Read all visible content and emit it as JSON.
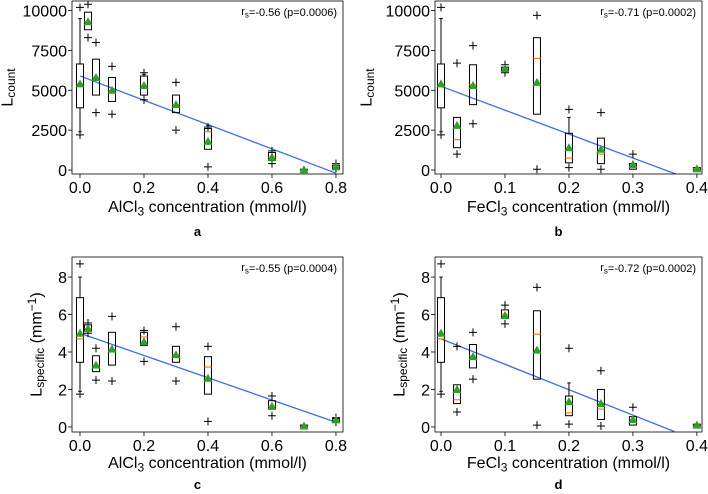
{
  "chart_data": [
    {
      "type": "box",
      "panel_label": "a",
      "xlabel": {
        "pre": "AlCl",
        "sub": "3",
        "post": " concentration (mmol/l)"
      },
      "ylabel": {
        "pre": "L",
        "sub": "count",
        "post": ""
      },
      "annotation": {
        "pre": "r",
        "sub": "s",
        "post": "=-0.56 (p=0.0006)"
      },
      "xlim": [
        -0.025,
        0.822
      ],
      "ylim": [
        -250,
        10600
      ],
      "xticks": [
        0.0,
        0.2,
        0.4,
        0.6,
        0.8
      ],
      "xtick_labels": [
        "0.0",
        "0.2",
        "0.4",
        "0.6",
        "0.8"
      ],
      "yticks": [
        0,
        2500,
        5000,
        7500,
        10000
      ],
      "ytick_labels": [
        "0",
        "2500",
        "5000",
        "7500",
        "10000"
      ],
      "regression": {
        "x": [
          0,
          0.8
        ],
        "y": [
          5900,
          -200
        ]
      },
      "boxes": [
        {
          "x": 0.0,
          "whislo": 2400,
          "q1": 3900,
          "med": 5400,
          "q3": 6650,
          "whishi": 9500,
          "mean": 5400,
          "fliers": [
            10200,
            2200
          ]
        },
        {
          "x": 0.025,
          "whislo": 8800,
          "q1": 8800,
          "med": 9300,
          "q3": 9900,
          "whishi": 9900,
          "mean": 9300,
          "fliers": [
            10400,
            8300
          ]
        },
        {
          "x": 0.05,
          "whislo": 4700,
          "q1": 4700,
          "med": 5800,
          "q3": 6950,
          "whishi": 6950,
          "mean": 5800,
          "fliers": [
            8000,
            3600
          ]
        },
        {
          "x": 0.1,
          "whislo": 4300,
          "q1": 4300,
          "med": 5000,
          "q3": 5800,
          "whishi": 5800,
          "mean": 5000,
          "fliers": [
            6500,
            3500
          ]
        },
        {
          "x": 0.2,
          "whislo": 4400,
          "q1": 4700,
          "med": 5300,
          "q3": 5900,
          "whishi": 6000,
          "mean": 5300,
          "fliers": [
            6100,
            4400
          ]
        },
        {
          "x": 0.3,
          "whislo": 3600,
          "q1": 3600,
          "med": 4100,
          "q3": 4700,
          "whishi": 4700,
          "mean": 4100,
          "fliers": [
            5500,
            2500
          ]
        },
        {
          "x": 0.4,
          "whislo": 1300,
          "q1": 1300,
          "med": 2400,
          "q3": 2600,
          "whishi": 2800,
          "mean": 1800,
          "fliers": [
            2700,
            200
          ]
        },
        {
          "x": 0.6,
          "whislo": 600,
          "q1": 600,
          "med": 800,
          "q3": 1100,
          "whishi": 1100,
          "mean": 800,
          "fliers": [
            1200,
            400
          ]
        },
        {
          "x": 0.7,
          "whislo": 0,
          "q1": 0,
          "med": 20,
          "q3": 50,
          "whishi": 50,
          "mean": 20,
          "fliers": []
        },
        {
          "x": 0.8,
          "whislo": 100,
          "q1": 100,
          "med": 200,
          "q3": 300,
          "whishi": 300,
          "mean": 200,
          "fliers": [
            400,
            100
          ]
        }
      ]
    },
    {
      "type": "box",
      "panel_label": "b",
      "xlabel": {
        "pre": "FeCl",
        "sub": "3",
        "post": " concentration (mmol/l)"
      },
      "ylabel": {
        "pre": "L",
        "sub": "count",
        "post": ""
      },
      "annotation": {
        "pre": "r",
        "sub": "s",
        "post": "=-0.71 (p=0.0002)"
      },
      "xlim": [
        -0.0094,
        0.408
      ],
      "ylim": [
        -250,
        10600
      ],
      "xticks": [
        0.0,
        0.1,
        0.2,
        0.3,
        0.4
      ],
      "xtick_labels": [
        "0.0",
        "0.1",
        "0.2",
        "0.3",
        "0.4"
      ],
      "yticks": [
        0,
        2500,
        5000,
        7500,
        10000
      ],
      "ytick_labels": [
        "0",
        "2500",
        "5000",
        "7500",
        "10000"
      ],
      "regression": {
        "x": [
          0,
          0.367
        ],
        "y": [
          5250,
          -250
        ]
      },
      "boxes": [
        {
          "x": 0.0,
          "whislo": 2400,
          "q1": 3900,
          "med": 5400,
          "q3": 6650,
          "whishi": 9500,
          "mean": 5400,
          "fliers": [
            10200,
            2200
          ]
        },
        {
          "x": 0.025,
          "whislo": 1400,
          "q1": 1400,
          "med": 1900,
          "q3": 3300,
          "whishi": 3300,
          "mean": 2800,
          "fliers": [
            6700,
            1000
          ]
        },
        {
          "x": 0.05,
          "whislo": 4100,
          "q1": 4100,
          "med": 5350,
          "q3": 6600,
          "whishi": 6600,
          "mean": 5300,
          "fliers": [
            7800,
            2900
          ]
        },
        {
          "x": 0.1,
          "whislo": 6200,
          "q1": 6200,
          "med": 6350,
          "q3": 6450,
          "whishi": 6450,
          "mean": 6350,
          "fliers": [
            6600,
            6100
          ]
        },
        {
          "x": 0.15,
          "whislo": 3500,
          "q1": 3500,
          "med": 7000,
          "q3": 8300,
          "whishi": 8300,
          "mean": 5500,
          "fliers": [
            9700,
            50
          ]
        },
        {
          "x": 0.2,
          "whislo": 450,
          "q1": 450,
          "med": 750,
          "q3": 2300,
          "whishi": 3300,
          "mean": 1400,
          "fliers": [
            3800,
            150
          ]
        },
        {
          "x": 0.25,
          "whislo": 400,
          "q1": 400,
          "med": 1000,
          "q3": 2000,
          "whishi": 2000,
          "mean": 1300,
          "fliers": [
            3600,
            50
          ]
        },
        {
          "x": 0.3,
          "whislo": 50,
          "q1": 50,
          "med": 150,
          "q3": 400,
          "whishi": 400,
          "mean": 350,
          "fliers": [
            1000
          ]
        },
        {
          "x": 0.4,
          "whislo": 0,
          "q1": 0,
          "med": 80,
          "q3": 150,
          "whishi": 150,
          "mean": 80,
          "fliers": []
        }
      ]
    },
    {
      "type": "box",
      "panel_label": "c",
      "xlabel": {
        "pre": "AlCl",
        "sub": "3",
        "post": " concentration (mmol/l)"
      },
      "ylabel": {
        "pre": "L",
        "sub": "specific",
        "post": " (mm",
        "sup": "−1",
        "end": ")"
      },
      "annotation": {
        "pre": "r",
        "sub": "s",
        "post": "=-0.55 (p=0.0004)"
      },
      "xlim": [
        -0.025,
        0.822
      ],
      "ylim": [
        -0.27,
        9.07
      ],
      "xticks": [
        0.0,
        0.2,
        0.4,
        0.6,
        0.8
      ],
      "xtick_labels": [
        "0.0",
        "0.2",
        "0.4",
        "0.6",
        "0.8"
      ],
      "yticks": [
        0,
        2,
        4,
        6,
        8
      ],
      "ytick_labels": [
        "0",
        "2",
        "4",
        "6",
        "8"
      ],
      "regression": {
        "x": [
          0,
          0.8
        ],
        "y": [
          5.0,
          0.25
        ]
      },
      "boxes": [
        {
          "x": 0.0,
          "whislo": 1.9,
          "q1": 3.45,
          "med": 4.7,
          "q3": 6.9,
          "whishi": 8.0,
          "mean": 5.0,
          "fliers": [
            8.7,
            1.75
          ]
        },
        {
          "x": 0.025,
          "whislo": 5.1,
          "q1": 5.1,
          "med": 5.25,
          "q3": 5.45,
          "whishi": 5.45,
          "mean": 5.25,
          "fliers": [
            5.55,
            5.0
          ]
        },
        {
          "x": 0.05,
          "whislo": 2.95,
          "q1": 2.95,
          "med": 3.3,
          "q3": 3.8,
          "whishi": 3.8,
          "mean": 3.3,
          "fliers": [
            4.2,
            2.5
          ]
        },
        {
          "x": 0.1,
          "whislo": 3.3,
          "q1": 3.3,
          "med": 4.1,
          "q3": 5.05,
          "whishi": 5.05,
          "mean": 4.15,
          "fliers": [
            5.9,
            2.45
          ]
        },
        {
          "x": 0.2,
          "whislo": 4.35,
          "q1": 4.35,
          "med": 4.8,
          "q3": 5.05,
          "whishi": 5.05,
          "mean": 4.55,
          "fliers": [
            5.15,
            3.5
          ]
        },
        {
          "x": 0.3,
          "whislo": 3.45,
          "q1": 3.45,
          "med": 3.85,
          "q3": 4.3,
          "whishi": 4.3,
          "mean": 3.85,
          "fliers": [
            5.35,
            2.45
          ]
        },
        {
          "x": 0.4,
          "whislo": 1.75,
          "q1": 1.75,
          "med": 3.2,
          "q3": 3.75,
          "whishi": 3.75,
          "mean": 2.6,
          "fliers": [
            4.3,
            0.3
          ]
        },
        {
          "x": 0.6,
          "whislo": 0.95,
          "q1": 0.95,
          "med": 1.1,
          "q3": 1.4,
          "whishi": 1.4,
          "mean": 1.1,
          "fliers": [
            1.65,
            0.6
          ]
        },
        {
          "x": 0.7,
          "whislo": 0,
          "q1": 0,
          "med": 0.05,
          "q3": 0.1,
          "whishi": 0.1,
          "mean": 0.05,
          "fliers": []
        },
        {
          "x": 0.8,
          "whislo": 0.3,
          "q1": 0.3,
          "med": 0.38,
          "q3": 0.45,
          "whishi": 0.45,
          "mean": 0.38,
          "fliers": [
            0.5,
            0.25
          ]
        }
      ]
    },
    {
      "type": "box",
      "panel_label": "d",
      "xlabel": {
        "pre": "FeCl",
        "sub": "3",
        "post": " concentration (mmol/l)"
      },
      "ylabel": {
        "pre": "L",
        "sub": "specific",
        "post": " (mm",
        "sup": "−1",
        "end": ")"
      },
      "annotation": {
        "pre": "r",
        "sub": "s",
        "post": "=-0.72 (p=0.0002)"
      },
      "xlim": [
        -0.0094,
        0.408
      ],
      "ylim": [
        -0.27,
        9.07
      ],
      "xticks": [
        0.0,
        0.1,
        0.2,
        0.3,
        0.4
      ],
      "xtick_labels": [
        "0.0",
        "0.1",
        "0.2",
        "0.3",
        "0.4"
      ],
      "yticks": [
        0,
        2,
        4,
        6,
        8
      ],
      "ytick_labels": [
        "0",
        "2",
        "4",
        "6",
        "8"
      ],
      "regression": {
        "x": [
          0,
          0.365
        ],
        "y": [
          4.7,
          -0.25
        ]
      },
      "boxes": [
        {
          "x": 0.0,
          "whislo": 1.9,
          "q1": 3.45,
          "med": 4.7,
          "q3": 6.9,
          "whishi": 8.0,
          "mean": 5.0,
          "fliers": [
            8.7,
            1.75
          ]
        },
        {
          "x": 0.025,
          "whislo": 1.25,
          "q1": 1.25,
          "med": 1.45,
          "q3": 2.25,
          "whishi": 2.25,
          "mean": 2.0,
          "fliers": [
            4.3,
            0.8
          ]
        },
        {
          "x": 0.05,
          "whislo": 3.15,
          "q1": 3.15,
          "med": 3.8,
          "q3": 4.4,
          "whishi": 4.4,
          "mean": 3.75,
          "fliers": [
            5.05,
            2.55
          ]
        },
        {
          "x": 0.1,
          "whislo": 5.8,
          "q1": 5.8,
          "med": 6.0,
          "q3": 6.25,
          "whishi": 6.25,
          "mean": 5.95,
          "fliers": [
            6.5,
            5.5
          ]
        },
        {
          "x": 0.15,
          "whislo": 2.55,
          "q1": 2.55,
          "med": 4.95,
          "q3": 6.2,
          "whishi": 6.2,
          "mean": 4.1,
          "fliers": [
            7.45,
            0.1
          ]
        },
        {
          "x": 0.2,
          "whislo": 0.6,
          "q1": 0.6,
          "med": 0.75,
          "q3": 1.65,
          "whishi": 2.35,
          "mean": 1.35,
          "fliers": [
            4.2,
            0.15
          ]
        },
        {
          "x": 0.25,
          "whislo": 0.4,
          "q1": 0.4,
          "med": 0.95,
          "q3": 2.0,
          "whishi": 2.0,
          "mean": 1.25,
          "fliers": [
            3.0,
            0.05
          ]
        },
        {
          "x": 0.3,
          "whislo": 0.1,
          "q1": 0.1,
          "med": 0.25,
          "q3": 0.55,
          "whishi": 0.55,
          "mean": 0.4,
          "fliers": [
            1.05
          ]
        },
        {
          "x": 0.4,
          "whislo": 0.05,
          "q1": 0.05,
          "med": 0.1,
          "q3": 0.15,
          "whishi": 0.15,
          "mean": 0.1,
          "fliers": []
        }
      ]
    }
  ],
  "colors": {
    "box": "#000000",
    "median": "#ff7f0e",
    "mean": "#2ca02c",
    "regression": "#3b6fe0",
    "flier": "#000000"
  }
}
